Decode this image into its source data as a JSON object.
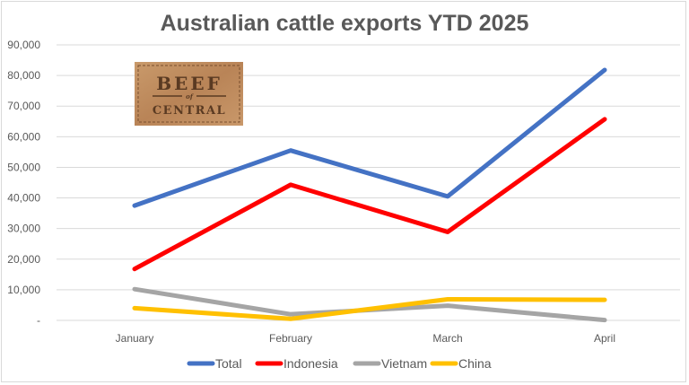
{
  "chart_data": {
    "type": "line",
    "title": "Australian cattle exports YTD 2025",
    "categories": [
      "January",
      "February",
      "March",
      "April"
    ],
    "ylim": [
      0,
      90000
    ],
    "yticks": [
      0,
      10000,
      20000,
      30000,
      40000,
      50000,
      60000,
      70000,
      80000,
      90000
    ],
    "ytick_labels": [
      "-",
      "10,000",
      "20,000",
      "30,000",
      "40,000",
      "50,000",
      "60,000",
      "70,000",
      "80,000",
      "90,000"
    ],
    "grid": true,
    "legend_position": "bottom",
    "series": [
      {
        "name": "Total",
        "color": "#4472c4",
        "values": [
          37500,
          55500,
          40500,
          81800
        ]
      },
      {
        "name": "Indonesia",
        "color": "#ff0000",
        "values": [
          16800,
          44300,
          28900,
          65700
        ]
      },
      {
        "name": "Vietnam",
        "color": "#a5a5a5",
        "values": [
          10200,
          2000,
          4800,
          100
        ]
      },
      {
        "name": "China",
        "color": "#ffc000",
        "values": [
          4000,
          500,
          6900,
          6700
        ]
      }
    ]
  },
  "logo": {
    "name": "beef-central-logo",
    "text_top": "BEEF",
    "text_mid": "of",
    "text_bottom": "CENTRAL"
  }
}
